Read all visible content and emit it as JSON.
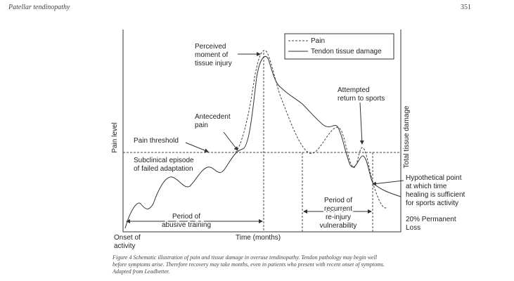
{
  "header": {
    "running_title": "Patellar tendinopathy",
    "page_number": "351"
  },
  "figure": {
    "y_axis_label": "Pain level",
    "y2_axis_label": "Total tissue damage",
    "x_axis_label": "Time (months)",
    "x_origin_label": [
      "Onset of",
      "activity"
    ],
    "legend": [
      "Pain",
      "Tendon tissue damage"
    ],
    "annotations": {
      "perceived_injury": [
        "Perceived",
        "moment of",
        "tissue injury"
      ],
      "antecedent_pain": [
        "Antecedent",
        "pain"
      ],
      "pain_threshold": [
        "Pain threshold"
      ],
      "subclinical": [
        "Subclinical episode",
        "of failed adaptation"
      ],
      "attempted_return": [
        "Attempted",
        "return to sports"
      ],
      "hypothetical_point": [
        "Hypothetical point",
        "at which time",
        "healing is sufficient",
        "for sports activity"
      ],
      "permanent_loss": [
        "20% Permanent",
        "Loss"
      ],
      "abusive_training": [
        "Period of",
        "abusive training"
      ],
      "reinjury": [
        "Period of",
        "recurrent",
        "re-injury",
        "vulnerability"
      ]
    },
    "caption": [
      "Figure 4    Schematic illustration of pain and tissue damage in overuse tendinopathy. Tendon pathology may begin well",
      "before symptoms arise. Therefore recovery may take months, even in patients who present with recent onset of symptoms.",
      "Adapted from Leadbetter."
    ]
  }
}
